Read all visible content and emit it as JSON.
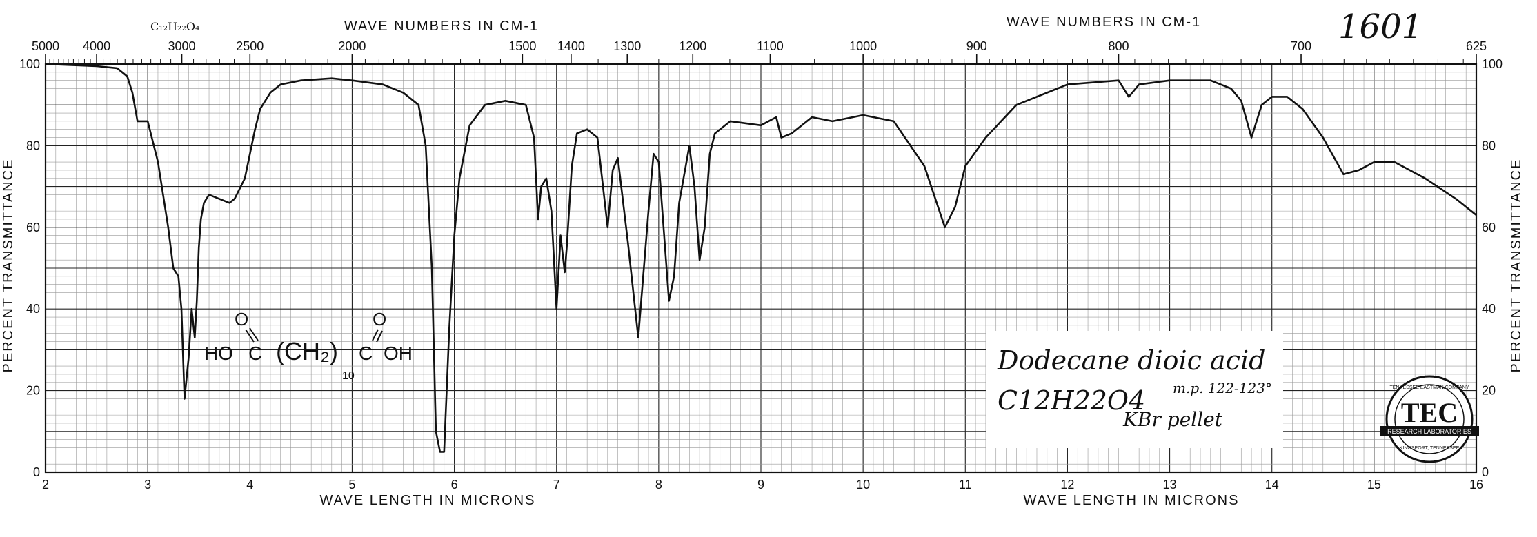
{
  "chart_data": {
    "type": "line",
    "id_number": "1601",
    "formula_top": "C₁₂H₂₂O₄",
    "top_title_left": "WAVE NUMBERS IN CM-1",
    "top_title_right": "WAVE NUMBERS IN CM-1",
    "xlabel_left": "WAVE LENGTH IN MICRONS",
    "xlabel_right": "WAVE LENGTH IN MICRONS",
    "ylabel_left": "PERCENT TRANSMITTANCE",
    "ylabel_right": "PERCENT TRANSMITTANCE",
    "xlim": [
      2,
      16
    ],
    "ylim": [
      0,
      100
    ],
    "grid": true,
    "x_ticks": [
      "2",
      "3",
      "4",
      "5",
      "6",
      "7",
      "8",
      "9",
      "10",
      "11",
      "12",
      "13",
      "14",
      "15",
      "16"
    ],
    "y_ticks_left": [
      "0",
      "20",
      "40",
      "60",
      "80",
      "100"
    ],
    "y_ticks_right": [
      "0",
      "20",
      "40",
      "60",
      "80",
      "100"
    ],
    "wavenumber_ticks": [
      {
        "label": "5000",
        "cm": 5000
      },
      {
        "label": "4000",
        "cm": 4000
      },
      {
        "label": "3000",
        "cm": 3000
      },
      {
        "label": "2500",
        "cm": 2500
      },
      {
        "label": "2000",
        "cm": 2000
      },
      {
        "label": "1500",
        "cm": 1500
      },
      {
        "label": "1400",
        "cm": 1400
      },
      {
        "label": "1300",
        "cm": 1300
      },
      {
        "label": "1200",
        "cm": 1200
      },
      {
        "label": "1100",
        "cm": 1100
      },
      {
        "label": "1000",
        "cm": 1000
      },
      {
        "label": "900",
        "cm": 900
      },
      {
        "label": "800",
        "cm": 800
      },
      {
        "label": "700",
        "cm": 700
      },
      {
        "label": "625",
        "cm": 625
      }
    ],
    "compound_name": "Dodecane dioic acid",
    "formula_text": "C12H22O4",
    "melting_point": "m.p. 122-123°",
    "sample_prep": "KBr pellet",
    "structure_labels": {
      "left": "HO",
      "c1": "C",
      "chain": "(CH₂)",
      "sub": "10",
      "c2": "C",
      "right": "OH",
      "o": "O"
    },
    "seal_text": {
      "outer": "TENNESSEE EASTMAN COMPANY",
      "letters": "TEC",
      "band": "RESEARCH LABORATORIES",
      "bottom": "KINGSPORT, TENNESSEE"
    },
    "series": [
      {
        "x": [
          2.0,
          2.5,
          2.7,
          2.8,
          2.85,
          2.9,
          3.0,
          3.1,
          3.15,
          3.2,
          3.25,
          3.3,
          3.33,
          3.36,
          3.4,
          3.43,
          3.46,
          3.48,
          3.5,
          3.52,
          3.55,
          3.6,
          3.7,
          3.8,
          3.85,
          3.95,
          4.0,
          4.05,
          4.1,
          4.2,
          4.3,
          4.5,
          4.8,
          5.0,
          5.3,
          5.5,
          5.65,
          5.72,
          5.78,
          5.82,
          5.86,
          5.9,
          5.95,
          6.0,
          6.05,
          6.15,
          6.3,
          6.5,
          6.7,
          6.78,
          6.82,
          6.85,
          6.9,
          6.95,
          7.0,
          7.04,
          7.08,
          7.1,
          7.15,
          7.2,
          7.3,
          7.4,
          7.5,
          7.55,
          7.6,
          7.7,
          7.8,
          7.9,
          7.95,
          8.0,
          8.1,
          8.15,
          8.2,
          8.3,
          8.35,
          8.4,
          8.45,
          8.5,
          8.55,
          8.7,
          9.0,
          9.15,
          9.2,
          9.3,
          9.5,
          9.7,
          9.9,
          10.0,
          10.3,
          10.6,
          10.8,
          10.9,
          11.0,
          11.2,
          11.5,
          12.0,
          12.5,
          12.6,
          12.7,
          13.0,
          13.4,
          13.5,
          13.6,
          13.7,
          13.8,
          13.9,
          14.0,
          14.15,
          14.3,
          14.5,
          14.7,
          14.85,
          15.0,
          15.2,
          15.5,
          15.8,
          16.0
        ],
        "y": [
          100,
          99.5,
          99,
          97,
          93,
          86,
          86,
          76,
          68,
          60,
          50,
          48,
          40,
          18,
          28,
          40,
          33,
          42,
          55,
          62,
          66,
          68,
          67,
          66,
          67,
          72,
          78,
          84,
          89,
          93,
          95,
          96,
          96.5,
          96,
          95,
          93,
          90,
          80,
          50,
          10,
          5,
          5,
          35,
          58,
          72,
          85,
          90,
          91,
          90,
          82,
          62,
          70,
          72,
          64,
          40,
          58,
          49,
          55,
          75,
          83,
          84,
          82,
          60,
          74,
          77,
          56,
          33,
          64,
          78,
          76,
          42,
          48,
          66,
          80,
          70,
          52,
          60,
          78,
          83,
          86,
          85,
          87,
          82,
          83,
          87,
          86,
          87,
          87.5,
          86,
          75,
          60,
          65,
          75,
          82,
          90,
          95,
          96,
          92,
          95,
          96,
          96,
          95,
          94,
          91,
          82,
          90,
          92,
          92,
          89,
          82,
          73,
          74,
          76,
          76,
          72,
          67,
          63
        ]
      }
    ]
  }
}
